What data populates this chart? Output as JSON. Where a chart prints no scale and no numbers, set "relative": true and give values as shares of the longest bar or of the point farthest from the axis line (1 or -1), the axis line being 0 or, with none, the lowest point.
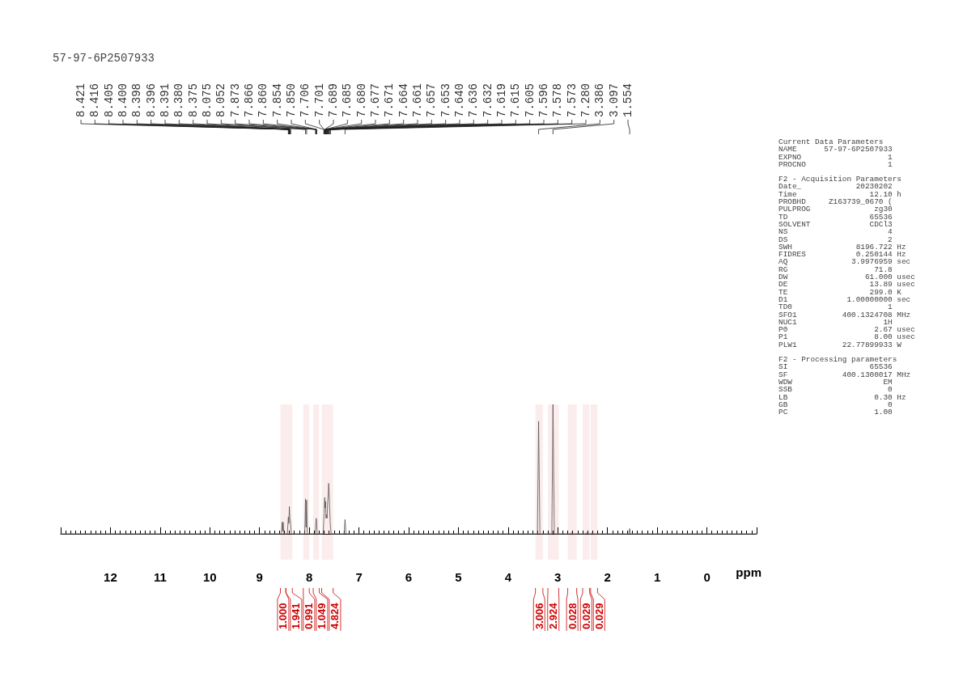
{
  "chart_data": {
    "type": "line",
    "title": "57-97-6P2507933",
    "xlabel": "ppm",
    "relative": true,
    "xlim": [
      13,
      -1
    ],
    "xticks": [
      12,
      11,
      10,
      9,
      8,
      7,
      6,
      5,
      4,
      3,
      2,
      1,
      0
    ],
    "series": [
      {
        "color": "#555555",
        "x": [
          13,
          8.56,
          8.545,
          8.535,
          8.525,
          8.51,
          8.44,
          8.421,
          8.41,
          8.4,
          8.39,
          8.38,
          8.36,
          8.09,
          8.075,
          8.064,
          8.052,
          8.04,
          7.88,
          7.866,
          7.86,
          7.854,
          7.84,
          7.72,
          7.701,
          7.689,
          7.68,
          7.671,
          7.664,
          7.653,
          7.64,
          7.632,
          7.619,
          7.61,
          7.6,
          7.59,
          7.578,
          7.56,
          7.3,
          7.28,
          7.26,
          3.41,
          3.386,
          3.36,
          3.12,
          3.097,
          3.07,
          2.74,
          2.72,
          2.7,
          2.44,
          2.42,
          2.4,
          2.33,
          2.31,
          2.29,
          1.57,
          1.554,
          1.54,
          -1
        ],
        "values": [
          0,
          0,
          0.09,
          0.02,
          0.09,
          0,
          0,
          0.13,
          0.08,
          0.21,
          0.12,
          0.1,
          0,
          0,
          0.27,
          0.05,
          0.26,
          0,
          0,
          0.09,
          0.12,
          0.11,
          0,
          0,
          0.16,
          0.28,
          0.2,
          0.25,
          0.12,
          0.15,
          0.12,
          0.22,
          0.3,
          0.39,
          0.33,
          0.2,
          0.08,
          0,
          0,
          0.11,
          0,
          0,
          0.87,
          0,
          0,
          1,
          0,
          0,
          0.01,
          0,
          0,
          0.01,
          0,
          0,
          0.01,
          0,
          0,
          0.04,
          0,
          0
        ]
      }
    ],
    "marker": "none",
    "bands": [
      {
        "axis": "x",
        "from": 8.58,
        "to": 8.47,
        "label": "1.000",
        "color": "#cc0000"
      },
      {
        "axis": "x",
        "from": 8.47,
        "to": 8.34,
        "label": "1.941",
        "color": "#cc0000"
      },
      {
        "axis": "x",
        "from": 8.12,
        "to": 8.0,
        "label": "0.991",
        "color": "#cc0000"
      },
      {
        "axis": "x",
        "from": 7.92,
        "to": 7.8,
        "label": "1.049",
        "color": "#cc0000"
      },
      {
        "axis": "x",
        "from": 7.75,
        "to": 7.52,
        "label": "4.824",
        "color": "#cc0000"
      },
      {
        "axis": "x",
        "from": 3.45,
        "to": 3.3,
        "label": "3.006",
        "color": "#cc0000"
      },
      {
        "axis": "x",
        "from": 3.2,
        "to": 2.98,
        "label": "2.924",
        "color": "#cc0000"
      },
      {
        "axis": "x",
        "from": 2.8,
        "to": 2.62,
        "label": "0.028",
        "color": "#cc0000"
      },
      {
        "axis": "x",
        "from": 2.5,
        "to": 2.36,
        "label": "0.029",
        "color": "#cc0000"
      },
      {
        "axis": "x",
        "from": 2.34,
        "to": 2.2,
        "label": "0.029",
        "color": "#cc0000"
      }
    ],
    "annotations": [
      {
        "text": "8.421",
        "x": 8.421
      },
      {
        "text": "8.416",
        "x": 8.416
      },
      {
        "text": "8.405",
        "x": 8.405
      },
      {
        "text": "8.400",
        "x": 8.4
      },
      {
        "text": "8.398",
        "x": 8.398
      },
      {
        "text": "8.396",
        "x": 8.396
      },
      {
        "text": "8.391",
        "x": 8.391
      },
      {
        "text": "8.380",
        "x": 8.38
      },
      {
        "text": "8.375",
        "x": 8.375
      },
      {
        "text": "8.075",
        "x": 8.075
      },
      {
        "text": "8.052",
        "x": 8.052
      },
      {
        "text": "7.873",
        "x": 7.873
      },
      {
        "text": "7.866",
        "x": 7.866
      },
      {
        "text": "7.860",
        "x": 7.86
      },
      {
        "text": "7.854",
        "x": 7.854
      },
      {
        "text": "7.850",
        "x": 7.85
      },
      {
        "text": "7.706",
        "x": 7.706
      },
      {
        "text": "7.701",
        "x": 7.701
      },
      {
        "text": "7.689",
        "x": 7.689
      },
      {
        "text": "7.685",
        "x": 7.685
      },
      {
        "text": "7.680",
        "x": 7.68
      },
      {
        "text": "7.677",
        "x": 7.677
      },
      {
        "text": "7.671",
        "x": 7.671
      },
      {
        "text": "7.664",
        "x": 7.664
      },
      {
        "text": "7.661",
        "x": 7.661
      },
      {
        "text": "7.657",
        "x": 7.657
      },
      {
        "text": "7.653",
        "x": 7.653
      },
      {
        "text": "7.640",
        "x": 7.64
      },
      {
        "text": "7.636",
        "x": 7.636
      },
      {
        "text": "7.632",
        "x": 7.632
      },
      {
        "text": "7.619",
        "x": 7.619
      },
      {
        "text": "7.615",
        "x": 7.615
      },
      {
        "text": "7.605",
        "x": 7.605
      },
      {
        "text": "7.596",
        "x": 7.596
      },
      {
        "text": "7.578",
        "x": 7.578
      },
      {
        "text": "7.573",
        "x": 7.573
      },
      {
        "text": "7.280",
        "x": 7.28
      },
      {
        "text": "3.386",
        "x": 3.386
      },
      {
        "text": "3.097",
        "x": 3.097
      },
      {
        "text": "1.554",
        "x": 1.554
      },
      "Current Data Parameters",
      "NAME      57-97-6P2507933",
      "EXPNO                   1",
      "PROCNO                  1",
      "F2 - Acquisition Parameters",
      "Date_            20230202",
      "Time                12.10 h",
      "PROBHD     Z163739_0670 (",
      "PULPROG              zg30",
      "TD                  65536",
      "SOLVENT             CDCl3",
      "NS                      4",
      "DS                      2",
      "SWH              8196.722 Hz",
      "FIDRES           0.250144 Hz",
      "AQ              3.9976959 sec",
      "RG                   71.8",
      "DW                 61.000 usec",
      "DE                  13.89 usec",
      "TE                  299.0 K",
      "D1             1.00000000 sec",
      "TD0                     1",
      "SFO1          400.1324708 MHz",
      "NUC1                   1H",
      "P0                   2.67 usec",
      "P1                   8.00 usec",
      "PLW1          22.77899933 W",
      "F2 - Processing parameters",
      "SI                  65536",
      "SF            400.1300017 MHz",
      "WDW                    EM",
      "SSB                     0",
      "LB                   0.30 Hz",
      "GB                      0",
      "PC                   1.00"
    ]
  }
}
